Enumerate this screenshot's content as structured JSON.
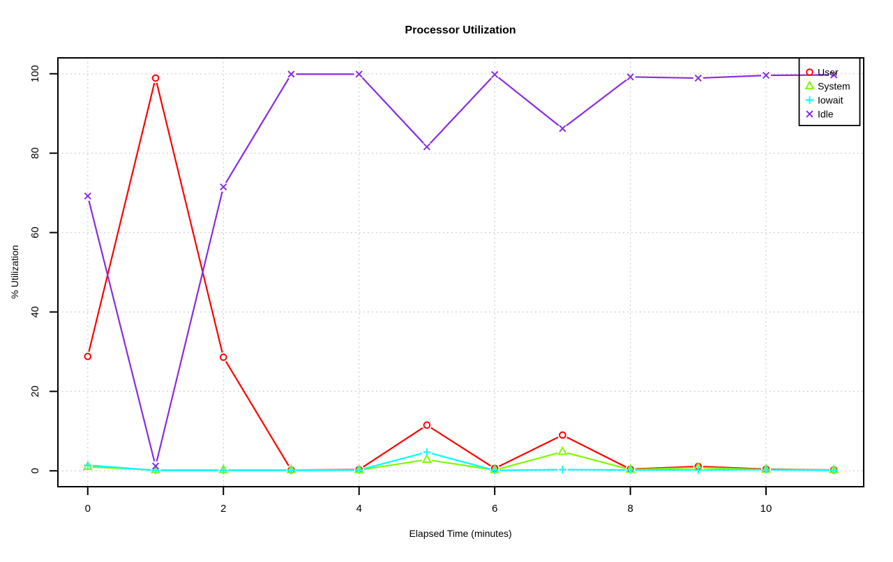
{
  "chart_data": {
    "type": "line",
    "title": "Processor Utilization",
    "xlabel": "Elapsed Time (minutes)",
    "ylabel": "% Utilization",
    "x": [
      0,
      1,
      2,
      3,
      4,
      5,
      6,
      7,
      8,
      9,
      10,
      11
    ],
    "series": [
      {
        "name": "User",
        "color": "#FF0000",
        "marker": "circle",
        "values": [
          28.8,
          98.9,
          28.6,
          0.2,
          0.3,
          11.5,
          0.6,
          9.0,
          0.4,
          1.1,
          0.4,
          0.2
        ]
      },
      {
        "name": "System",
        "color": "#7CFC00",
        "marker": "triangle",
        "values": [
          1.0,
          0.2,
          0.2,
          0.2,
          0.2,
          2.8,
          0.2,
          4.8,
          0.3,
          0.8,
          0.3,
          0.2
        ]
      },
      {
        "name": "Iowait",
        "color": "#00FFFF",
        "marker": "plus",
        "values": [
          1.4,
          0.1,
          0.1,
          0.1,
          0.2,
          4.7,
          0.1,
          0.3,
          0.2,
          0.2,
          0.3,
          0.1
        ]
      },
      {
        "name": "Idle",
        "color": "#8A2BE2",
        "marker": "x",
        "values": [
          69.2,
          1.2,
          71.5,
          99.9,
          99.9,
          81.6,
          99.8,
          86.2,
          99.2,
          98.9,
          99.6,
          99.7
        ]
      }
    ],
    "xticks": [
      0,
      2,
      4,
      6,
      8,
      10
    ],
    "xtick_labels": [
      "0",
      "2",
      "4",
      "6",
      "8",
      "10"
    ],
    "yticks": [
      0,
      20,
      40,
      60,
      80,
      100
    ],
    "ytick_labels": [
      "0",
      "20",
      "40",
      "60",
      "80",
      "100"
    ],
    "xlim": [
      -0.44,
      11.44
    ],
    "ylim": [
      -4,
      104
    ],
    "grid": true,
    "grid_color": "#C8C8C8",
    "legend_position": "top-right",
    "legend_labels": [
      "User",
      "System",
      "Iowait",
      "Idle"
    ]
  }
}
